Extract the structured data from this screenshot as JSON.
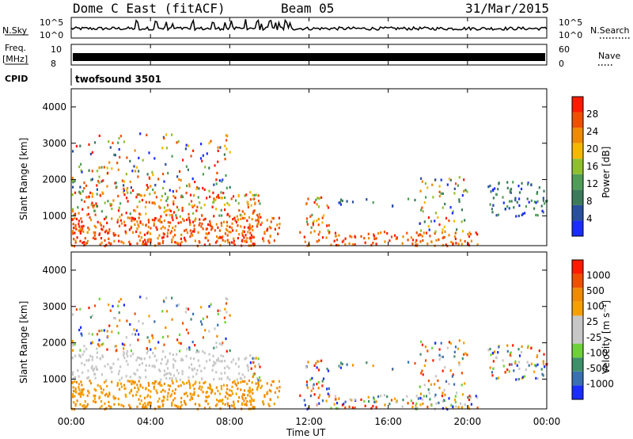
{
  "header": {
    "station": "Dome C East (fitACF)",
    "beam": "Beam 05",
    "date": "31/Mar/2015"
  },
  "strip_panels": {
    "nsky": {
      "left_label": "N.Sky",
      "left_ticks": [
        "10^5",
        "10^0"
      ],
      "right_ticks": [
        "10^5",
        "10^0"
      ],
      "right_label": "N.Search"
    },
    "freq": {
      "left_label_line1": "Freq.",
      "left_label_line2": "[MHz]",
      "left_ticks": [
        "10",
        "8"
      ],
      "right_ticks": [
        "60",
        "0"
      ],
      "right_label": "Nave"
    },
    "cpid": {
      "label": "CPID",
      "program": "twofsound 3501"
    }
  },
  "colors": {
    "power": [
      "#1a2cff",
      "#2a4f9c",
      "#3b7a5a",
      "#4f9d59",
      "#8fbf2f",
      "#f5b800",
      "#f08a00",
      "#f04f00",
      "#ff1a00"
    ],
    "velocity": [
      "#ff1a00",
      "#f04f00",
      "#f08a00",
      "#f5a000",
      "#c7c7c7",
      "#c7c7c7",
      "#6fd13a",
      "#3f8f6a",
      "#3a6fb0",
      "#1a2cff"
    ]
  },
  "chart_data": [
    {
      "type": "heatmap",
      "name": "power",
      "ylabel": "Slant Range [km]",
      "yticks": [
        "1000",
        "2000",
        "3000",
        "4000"
      ],
      "ylim": [
        180,
        4500
      ],
      "xlim": [
        0,
        24
      ],
      "colorbar_label": "Power [dB]",
      "colorbar_ticks": [
        "4",
        "8",
        "12",
        "16",
        "20",
        "24",
        "28"
      ],
      "colorbar_range": [
        0,
        32
      ]
    },
    {
      "type": "heatmap",
      "name": "velocity",
      "ylabel": "Slant Range [km]",
      "yticks": [
        "1000",
        "2000",
        "3000",
        "4000"
      ],
      "ylim": [
        180,
        4500
      ],
      "xlim": [
        0,
        24
      ],
      "colorbar_label": "Velocity [m s⁻¹]",
      "colorbar_ticks": [
        "1000",
        "500",
        "100",
        "25",
        "-25",
        "-100",
        "-500",
        "-1000"
      ]
    }
  ],
  "xaxis": {
    "ticks": [
      "00:00",
      "04:00",
      "08:00",
      "12:00",
      "16:00",
      "20:00",
      "00:00"
    ],
    "label": "Time UT"
  }
}
